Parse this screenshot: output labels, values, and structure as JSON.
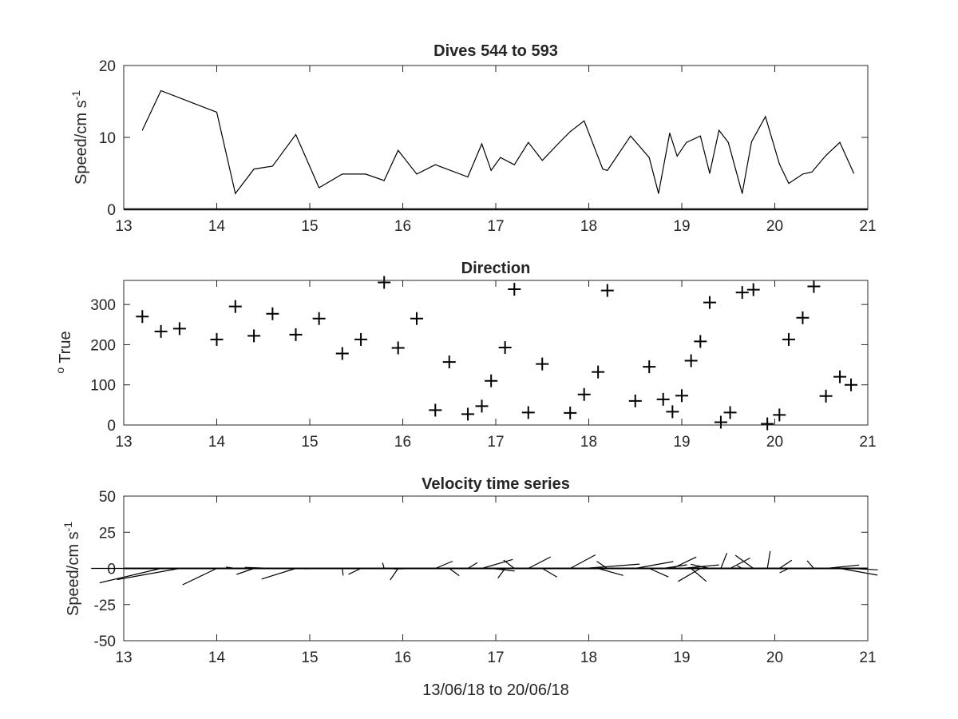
{
  "chart_data": [
    {
      "type": "line",
      "title": "Dives 544 to 593",
      "ylabel": "Speed/cm s",
      "ylabel_superscript": "-1",
      "xlim": [
        13,
        21
      ],
      "ylim": [
        0,
        20
      ],
      "xticks": [
        "13",
        "14",
        "15",
        "16",
        "17",
        "18",
        "19",
        "20",
        "21"
      ],
      "yticks": [
        "0",
        "10",
        "20"
      ],
      "grid": false,
      "line_color": "#000000",
      "x": [
        13.2,
        13.4,
        14.0,
        14.2,
        14.4,
        14.6,
        14.85,
        15.1,
        15.35,
        15.6,
        15.8,
        15.95,
        16.15,
        16.35,
        16.7,
        16.85,
        16.95,
        17.05,
        17.2,
        17.35,
        17.5,
        17.7,
        17.8,
        17.95,
        18.15,
        18.2,
        18.45,
        18.65,
        18.75,
        18.87,
        18.95,
        19.05,
        19.2,
        19.3,
        19.4,
        19.5,
        19.65,
        19.75,
        19.9,
        20.05,
        20.15,
        20.3,
        20.4,
        20.55,
        20.7,
        20.85
      ],
      "values": [
        11,
        16.5,
        13.5,
        2.2,
        5.6,
        6.0,
        10.4,
        3.0,
        4.9,
        4.9,
        4.0,
        8.2,
        4.9,
        6.2,
        4.5,
        9.1,
        5.4,
        7.2,
        6.2,
        9.3,
        6.8,
        9.5,
        10.8,
        12.3,
        5.6,
        5.4,
        10.2,
        7.2,
        2.2,
        10.6,
        7.4,
        9.3,
        10.2,
        5.0,
        11.0,
        9.3,
        2.2,
        9.4,
        12.9,
        6.3,
        3.6,
        4.9,
        5.2,
        7.5,
        9.3,
        5.0
      ]
    },
    {
      "type": "scatter",
      "title": "Direction",
      "ylabel": "True",
      "ylabel_superscript": "o",
      "xlim": [
        13,
        21
      ],
      "ylim": [
        0,
        360
      ],
      "xticks": [
        "13",
        "14",
        "15",
        "16",
        "17",
        "18",
        "19",
        "20",
        "21"
      ],
      "yticks": [
        "0",
        "100",
        "200",
        "300"
      ],
      "grid": false,
      "marker": "+",
      "marker_color": "#000000",
      "x": [
        13.2,
        13.4,
        13.6,
        14.0,
        14.2,
        14.4,
        14.6,
        14.85,
        15.1,
        15.35,
        15.55,
        15.8,
        15.95,
        16.15,
        16.35,
        16.5,
        16.7,
        16.85,
        16.95,
        17.1,
        17.2,
        17.35,
        17.5,
        17.8,
        17.95,
        18.1,
        18.2,
        18.5,
        18.65,
        18.8,
        18.9,
        19.0,
        19.1,
        19.2,
        19.3,
        19.42,
        19.52,
        19.65,
        19.77,
        19.92,
        20.05,
        20.15,
        20.3,
        20.42,
        20.55,
        20.7,
        20.82
      ],
      "values": [
        270,
        233,
        240,
        213,
        295,
        222,
        277,
        225,
        265,
        178,
        213,
        355,
        192,
        265,
        37,
        157,
        27,
        47,
        110,
        193,
        338,
        31,
        152,
        30,
        76,
        132,
        335,
        60,
        145,
        64,
        33,
        73,
        160,
        208,
        305,
        7,
        31,
        330,
        337,
        3,
        25,
        213,
        267,
        345,
        72,
        120,
        100
      ]
    },
    {
      "type": "quiver",
      "title": "Velocity time series",
      "ylabel": "Speed/cm s",
      "ylabel_superscript": "-1",
      "xlabel": "13/06/18 to 20/06/18",
      "xlim": [
        13,
        21
      ],
      "ylim": [
        -50,
        50
      ],
      "xticks": [
        "13",
        "14",
        "15",
        "16",
        "17",
        "18",
        "19",
        "20",
        "21"
      ],
      "yticks": [
        "-50",
        "-25",
        "0",
        "25",
        "50"
      ],
      "grid": false,
      "baseline": 0,
      "stick_color": "#000000",
      "speed_source": "Dives 544 to 593",
      "direction_source": "Direction"
    }
  ]
}
